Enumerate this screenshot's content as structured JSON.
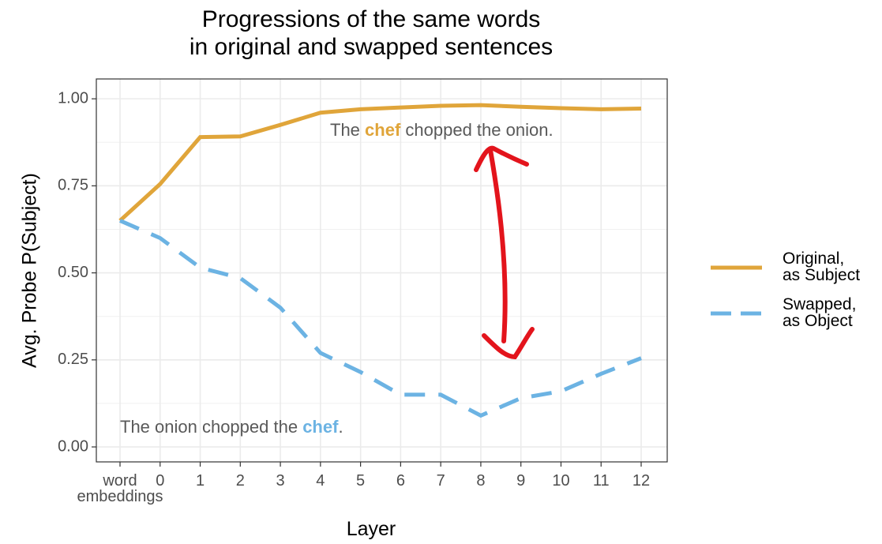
{
  "chart_data": {
    "type": "line",
    "title": "Progressions of the same words\nin original and swapped sentences",
    "x_label": "Layer",
    "y_label": "Avg. Probe P(Subject)",
    "categories": [
      "word\nembeddings",
      "0",
      "1",
      "2",
      "3",
      "4",
      "5",
      "6",
      "7",
      "8",
      "9",
      "10",
      "11",
      "12"
    ],
    "series": [
      {
        "name": "Original,\nas Subject",
        "color": "#e0a53a",
        "dash": false,
        "values": [
          0.65,
          0.755,
          0.89,
          0.892,
          0.925,
          0.96,
          0.97,
          0.975,
          0.98,
          0.982,
          0.977,
          0.973,
          0.97,
          0.972
        ]
      },
      {
        "name": "Swapped,\nas Object",
        "color": "#6cb3e3",
        "dash": true,
        "values": [
          0.65,
          0.6,
          0.515,
          0.485,
          0.4,
          0.27,
          0.215,
          0.15,
          0.15,
          0.09,
          0.14,
          0.16,
          0.21,
          0.255
        ]
      }
    ],
    "ylim": [
      -0.043,
      1.057
    ],
    "yticks": [
      {
        "value": 0,
        "label": "0.00"
      },
      {
        "value": 0.25,
        "label": "0.25"
      },
      {
        "value": 0.5,
        "label": "0.50"
      },
      {
        "value": 0.75,
        "label": "0.75"
      },
      {
        "value": 1,
        "label": "1.00"
      }
    ],
    "grid": true,
    "legend": "right",
    "annotations": [
      {
        "parts": [
          "The ",
          "chef",
          " chopped the onion."
        ],
        "color": "#e0a53a"
      },
      {
        "parts": [
          "The onion chopped the ",
          "chef",
          "."
        ],
        "color": "#6cb3e3"
      }
    ]
  }
}
